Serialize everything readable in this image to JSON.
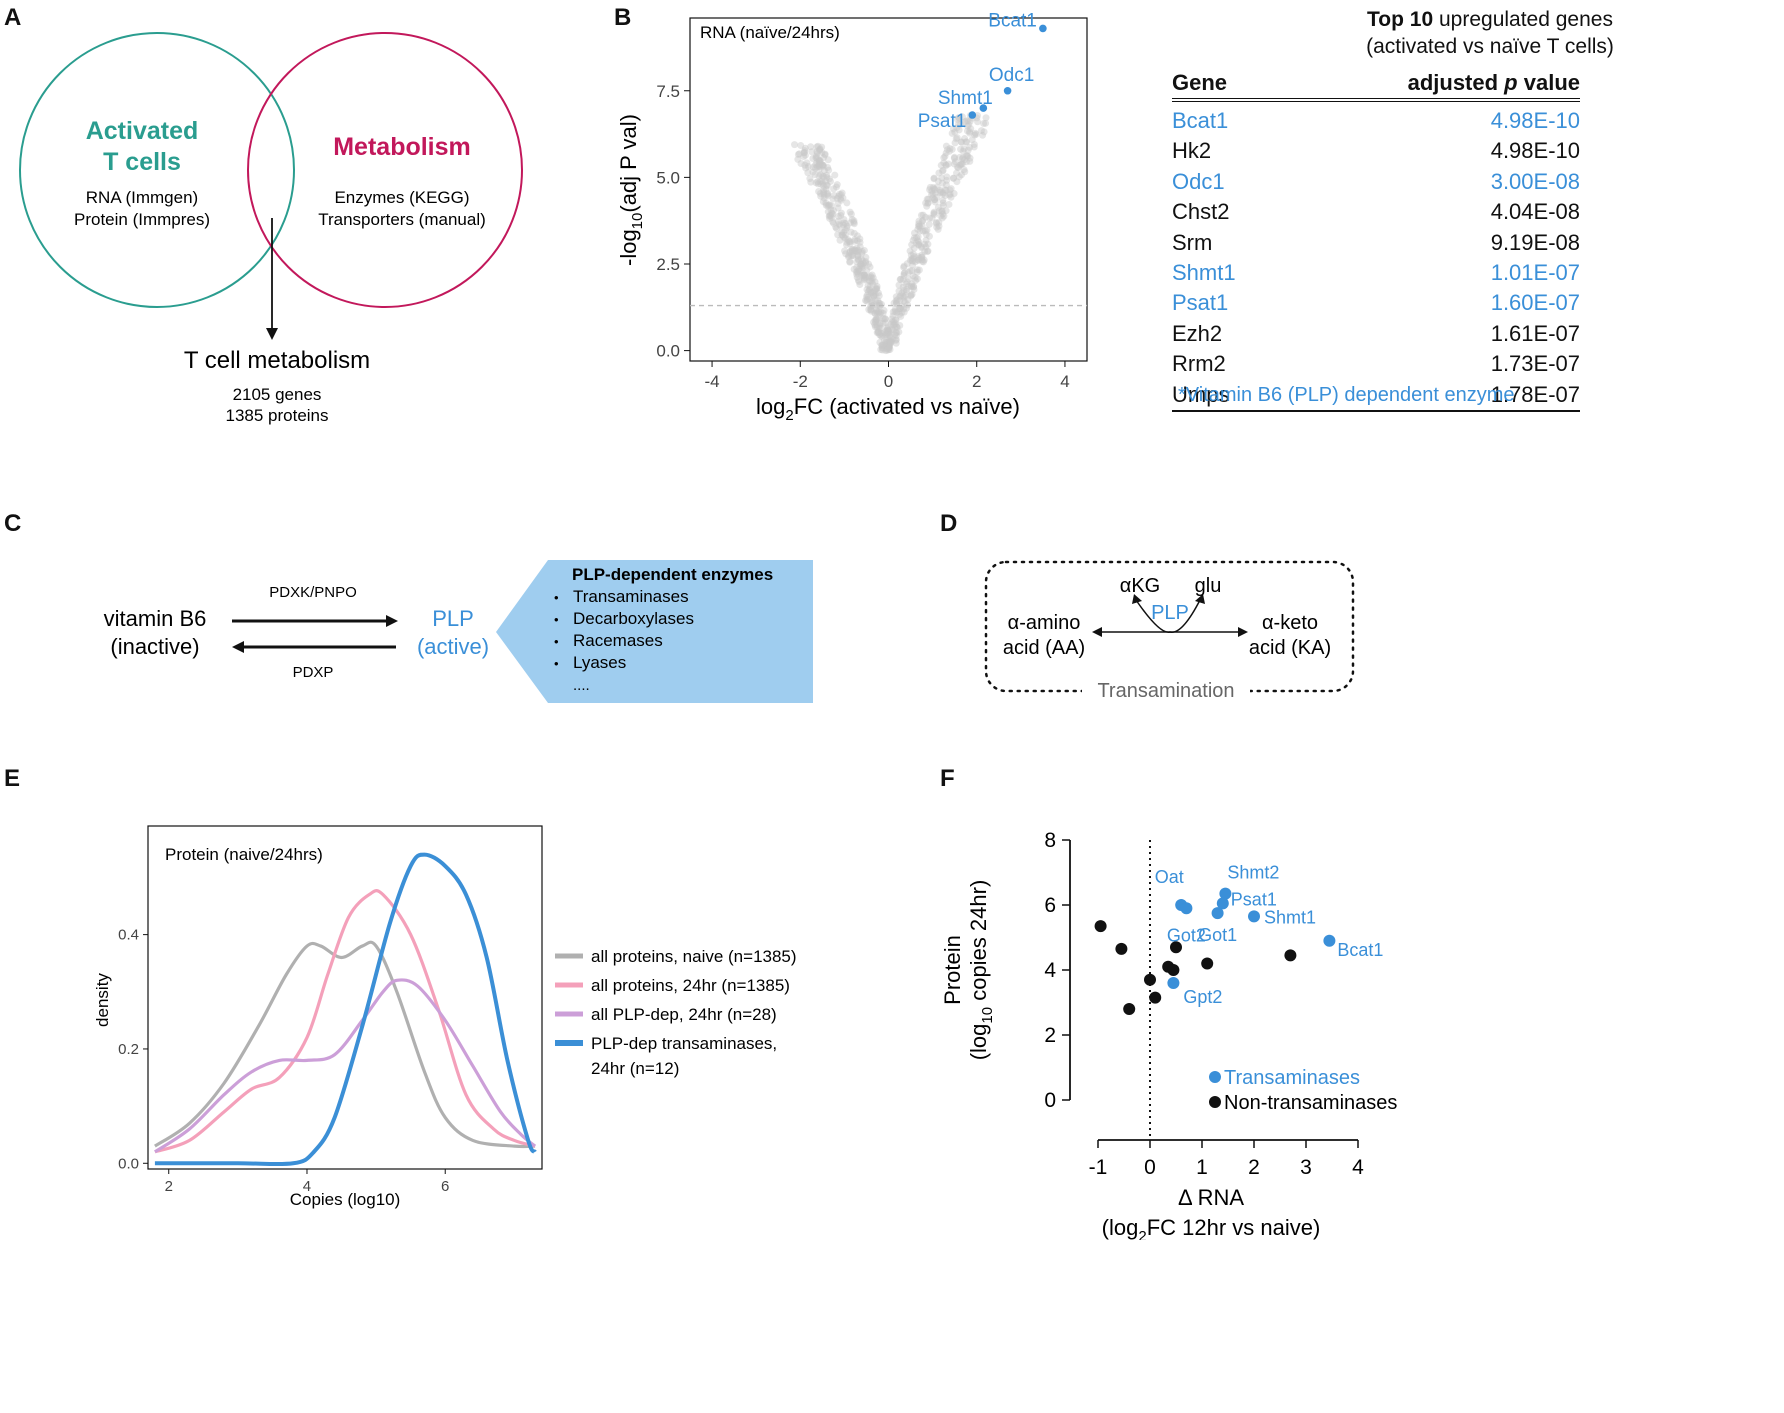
{
  "panels": {
    "a": "A",
    "b": "B",
    "c": "C",
    "d": "D",
    "e": "E",
    "f": "F"
  },
  "colors": {
    "blue": "#3a8fd8",
    "teal": "#2a9d8f",
    "magenta": "#c2185b",
    "grey": "#b0b0b0"
  },
  "panelA": {
    "left_title_1": "Activated",
    "left_title_2": "T cells",
    "left_line_1": "RNA (Immgen)",
    "left_line_2": "Protein (Immpres)",
    "right_title": "Metabolism",
    "right_line_1": "Enzymes (KEGG)",
    "right_line_2": "Transporters (manual)",
    "result_title": "T cell metabolism",
    "result_genes": "2105 genes",
    "result_proteins": "1385 proteins"
  },
  "panelB": {
    "chart_data": {
      "type": "scatter",
      "title": "RNA (naïve/24hrs)",
      "xlabel_pre": "log",
      "xlabel_sub": "2",
      "xlabel_post": "FC (activated vs naïve)",
      "ylabel_pre": "-log",
      "ylabel_sub": "10",
      "ylabel_post": "(adj P val)",
      "xlim": [
        -4.5,
        4.5
      ],
      "ylim": [
        -0.3,
        9.6
      ],
      "x_ticks": [
        -4,
        -2,
        0,
        2,
        4
      ],
      "y_ticks": [
        0.0,
        2.5,
        5.0,
        7.5
      ],
      "y_tick_labels": [
        "0.0",
        "2.5",
        "5.0",
        "7.5"
      ],
      "threshold_y": 1.3,
      "highlighted": [
        {
          "label": "Bcat1",
          "x": 3.5,
          "y": 9.3
        },
        {
          "label": "Odc1",
          "x": 2.7,
          "y": 7.5
        },
        {
          "label": "Shmt1",
          "x": 2.15,
          "y": 7.0
        },
        {
          "label": "Psat1",
          "x": 1.9,
          "y": 6.8
        }
      ]
    },
    "table": {
      "title_bold": "Top 10",
      "title_rest": " upregulated genes",
      "subtitle": "(activated vs naïve T cells)",
      "col_gene": "Gene",
      "col_pval_pre": "adjusted ",
      "col_pval_p": "p",
      "col_pval_post": " value",
      "rows": [
        {
          "gene": "Bcat1",
          "pval": "4.98E-10",
          "plp": true
        },
        {
          "gene": "Hk2",
          "pval": "4.98E-10",
          "plp": false
        },
        {
          "gene": "Odc1",
          "pval": "3.00E-08",
          "plp": true
        },
        {
          "gene": "Chst2",
          "pval": "4.04E-08",
          "plp": false
        },
        {
          "gene": "Srm",
          "pval": "9.19E-08",
          "plp": false
        },
        {
          "gene": "Shmt1",
          "pval": "1.01E-07",
          "plp": true
        },
        {
          "gene": "Psat1",
          "pval": "1.60E-07",
          "plp": true
        },
        {
          "gene": "Ezh2",
          "pval": "1.61E-07",
          "plp": false
        },
        {
          "gene": "Rrm2",
          "pval": "1.73E-07",
          "plp": false
        },
        {
          "gene": "Umps",
          "pval": "1.78E-07",
          "plp": false
        }
      ],
      "footnote": "*Vitamin B6 (PLP) dependent enzyme"
    }
  },
  "panelC": {
    "vitb6_1": "vitamin B6",
    "vitb6_2": "(inactive)",
    "forward_enzyme": "PDXK/PNPO",
    "reverse_enzyme": "PDXP",
    "plp_1": "PLP",
    "plp_2": "(active)",
    "box_title": "PLP-dependent enzymes",
    "box_items": [
      "Transaminases",
      "Decarboxylases",
      "Racemases",
      "Lyases"
    ],
    "box_more": "....",
    "bullet": "•"
  },
  "panelD": {
    "left_1": "α-amino",
    "left_2": "acid (AA)",
    "right_1": "α-keto",
    "right_2": "acid (KA)",
    "akg": "αKG",
    "glu": "glu",
    "plp": "PLP",
    "caption": "Transamination"
  },
  "panelE": {
    "chart_data": {
      "type": "line",
      "title": "Protein (naive/24hrs)",
      "xlabel": "Copies (log10)",
      "ylabel": "density",
      "xlim": [
        1.7,
        7.4
      ],
      "ylim": [
        -0.01,
        0.59
      ],
      "x_ticks": [
        2,
        4,
        6
      ],
      "y_ticks": [
        0.0,
        0.2,
        0.4
      ],
      "y_tick_labels": [
        "0.0",
        "0.2",
        "0.4"
      ],
      "series": [
        {
          "name": "all proteins, naive (n=1385)",
          "color": "#b0b0b0",
          "x": [
            1.8,
            2.3,
            2.8,
            3.3,
            3.7,
            4.0,
            4.2,
            4.5,
            4.8,
            5.0,
            5.3,
            5.7,
            6.0,
            6.4,
            7.0,
            7.3
          ],
          "y": [
            0.03,
            0.07,
            0.14,
            0.24,
            0.33,
            0.38,
            0.38,
            0.36,
            0.38,
            0.38,
            0.3,
            0.16,
            0.08,
            0.04,
            0.03,
            0.03
          ]
        },
        {
          "name": "all proteins, 24hr  (n=1385)",
          "color": "#f4a0ba",
          "x": [
            1.8,
            2.3,
            2.8,
            3.2,
            3.6,
            4.0,
            4.3,
            4.6,
            4.9,
            5.1,
            5.5,
            5.9,
            6.3,
            6.7,
            7.0,
            7.3
          ],
          "y": [
            0.02,
            0.04,
            0.09,
            0.13,
            0.15,
            0.22,
            0.33,
            0.43,
            0.47,
            0.47,
            0.4,
            0.27,
            0.12,
            0.06,
            0.04,
            0.03
          ]
        },
        {
          "name": "all PLP-dep, 24hr (n=28)",
          "color": "#cc9fd8",
          "x": [
            1.8,
            2.3,
            2.8,
            3.2,
            3.6,
            4.0,
            4.4,
            4.8,
            5.1,
            5.3,
            5.6,
            6.0,
            6.4,
            6.8,
            7.1,
            7.3
          ],
          "y": [
            0.02,
            0.06,
            0.12,
            0.16,
            0.18,
            0.18,
            0.19,
            0.25,
            0.3,
            0.32,
            0.31,
            0.25,
            0.17,
            0.09,
            0.05,
            0.03
          ]
        },
        {
          "name": "PLP-dep transaminases, 24hr (n=12)",
          "color": "#3b8fd6",
          "x": [
            1.8,
            3.0,
            3.8,
            4.1,
            4.4,
            4.8,
            5.2,
            5.5,
            5.7,
            6.0,
            6.3,
            6.6,
            6.9,
            7.2,
            7.3
          ],
          "y": [
            0.0,
            0.0,
            0.0,
            0.02,
            0.08,
            0.24,
            0.42,
            0.52,
            0.54,
            0.52,
            0.47,
            0.36,
            0.18,
            0.04,
            0.02
          ]
        }
      ],
      "legend": [
        {
          "text_1": "all proteins, naive (n=1385)",
          "text_2": ""
        },
        {
          "text_1": "all proteins, 24hr  (n=1385)",
          "text_2": ""
        },
        {
          "text_1": "all PLP-dep, 24hr (n=28)",
          "text_2": ""
        },
        {
          "text_1": "PLP-dep transaminases,",
          "text_2": "24hr (n=12)"
        }
      ]
    }
  },
  "panelF": {
    "chart_data": {
      "type": "scatter",
      "xlabel_1": "Δ RNA",
      "xlabel_2_pre": "(log",
      "xlabel_2_sub": "2",
      "xlabel_2_post": "FC 12hr vs naive)",
      "ylabel_1": "Protein",
      "ylabel_2_pre": "(log",
      "ylabel_2_sub": "10",
      "ylabel_2_post": " copies 24hr)",
      "xlim": [
        -1.2,
        4.2
      ],
      "ylim": [
        -0.4,
        8.4
      ],
      "x_ticks": [
        -1,
        0,
        1,
        2,
        3,
        4
      ],
      "y_ticks": [
        0,
        2,
        4,
        6,
        8
      ],
      "transaminases": [
        {
          "label": "Oat",
          "x": 0.6,
          "y": 6.0
        },
        {
          "label": "Got2",
          "x": 0.7,
          "y": 5.9
        },
        {
          "label": "Shmt2",
          "x": 1.45,
          "y": 6.35
        },
        {
          "label": "Psat1",
          "x": 1.4,
          "y": 6.05
        },
        {
          "label": "Got1",
          "x": 1.3,
          "y": 5.75
        },
        {
          "label": "Shmt1",
          "x": 2.0,
          "y": 5.65
        },
        {
          "label": "Bcat1",
          "x": 3.45,
          "y": 4.9
        },
        {
          "label": "Gpt2",
          "x": 0.45,
          "y": 3.6
        }
      ],
      "non_transaminases": [
        {
          "x": -0.95,
          "y": 5.35
        },
        {
          "x": -0.55,
          "y": 4.65
        },
        {
          "x": -0.4,
          "y": 2.8
        },
        {
          "x": 0.0,
          "y": 3.7
        },
        {
          "x": 0.1,
          "y": 3.15
        },
        {
          "x": 0.35,
          "y": 4.1
        },
        {
          "x": 0.45,
          "y": 4.0
        },
        {
          "x": 0.5,
          "y": 4.7
        },
        {
          "x": 1.1,
          "y": 4.2
        },
        {
          "x": 2.7,
          "y": 4.45
        }
      ],
      "legend_transaminases": "Transaminases",
      "legend_non": "Non-transaminases"
    }
  }
}
